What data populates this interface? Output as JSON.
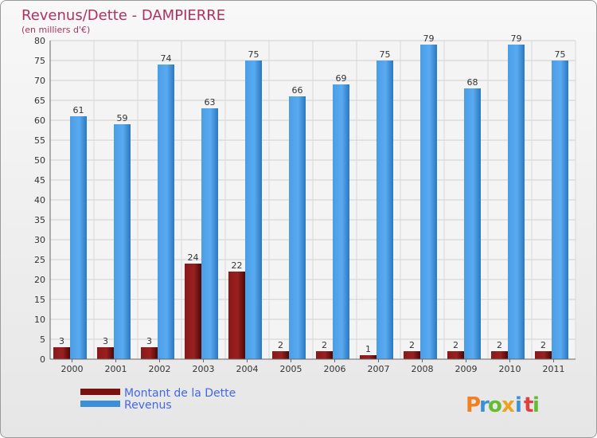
{
  "chart_data": {
    "type": "bar",
    "title": "Revenus/Dette - DAMPIERRE",
    "subtitle": "(en milliers d'€)",
    "categories": [
      "2000",
      "2001",
      "2002",
      "2003",
      "2004",
      "2005",
      "2006",
      "2007",
      "2008",
      "2009",
      "2010",
      "2011"
    ],
    "series": [
      {
        "name": "Montant de la Dette",
        "color": "#7a1010",
        "values": [
          3,
          3,
          3,
          24,
          22,
          2,
          2,
          1,
          2,
          2,
          2,
          2
        ]
      },
      {
        "name": "Revenus",
        "color": "#3a8fd8",
        "values": [
          61,
          59,
          74,
          63,
          75,
          66,
          69,
          75,
          79,
          68,
          79,
          75
        ]
      }
    ],
    "ylim": [
      0,
      80
    ],
    "yticks": [
      0,
      5,
      10,
      15,
      20,
      25,
      30,
      35,
      40,
      45,
      50,
      55,
      60,
      65,
      70,
      75,
      80
    ],
    "grid": true,
    "legend_position": "bottom-left"
  },
  "logo": {
    "letters": [
      "P",
      "r",
      "o",
      "x",
      "i",
      "t",
      "i"
    ],
    "colors": [
      "#f08020",
      "#3a8fd8",
      "#66bb33",
      "#f0a020",
      "#3a8fd8",
      "#e04040",
      "#66bb33"
    ]
  }
}
